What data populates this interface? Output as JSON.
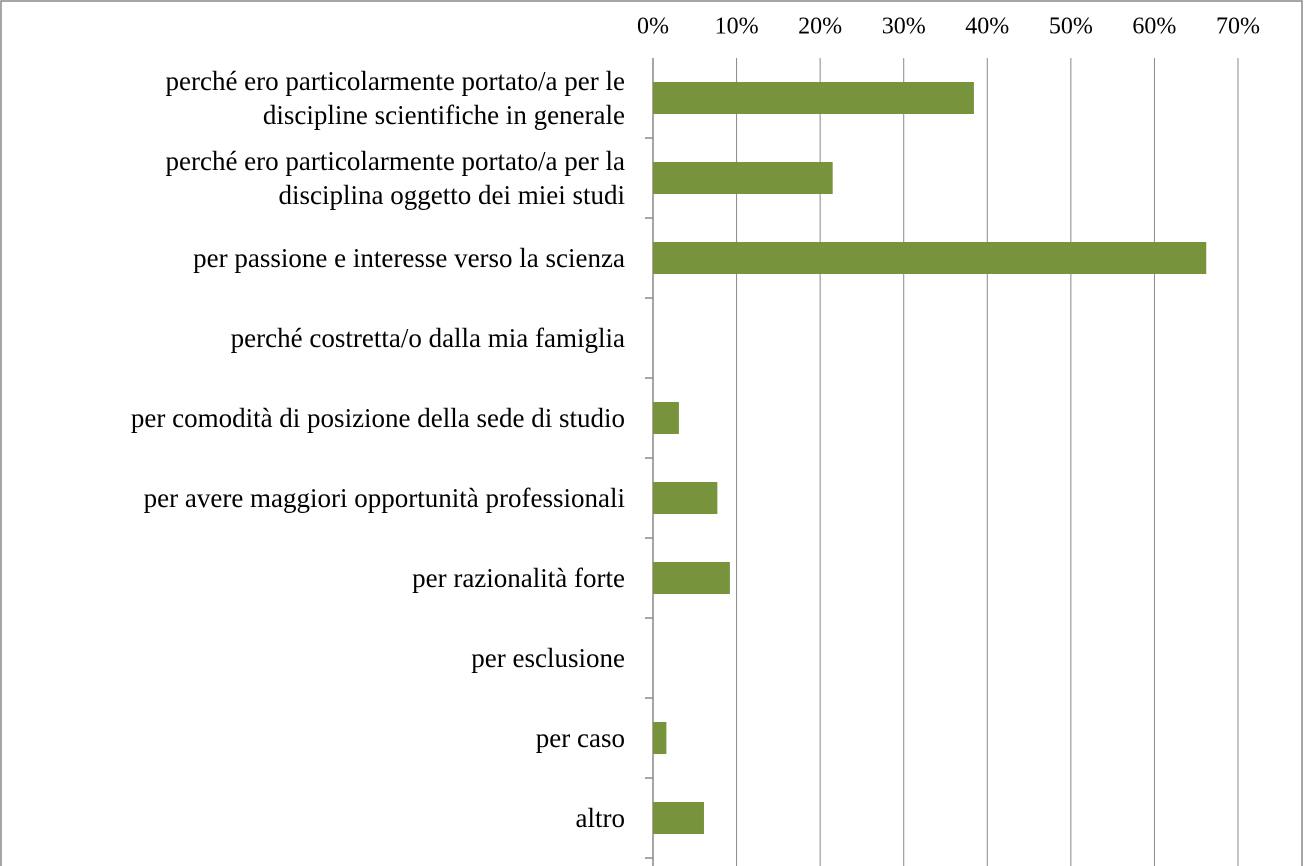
{
  "chart_data": {
    "type": "barh",
    "categories": [
      "perché ero particolarmente portato/a per le discipline scientifiche in generale",
      "perché ero particolarmente portato/a per la disciplina oggetto dei miei studi",
      "per passione e interesse verso la scienza",
      "perché costretta/o dalla mia famiglia",
      "per comodità di posizione della sede di studio",
      "per avere maggiori opportunità professionali",
      "per razionalità forte",
      "per esclusione",
      "per caso",
      "altro"
    ],
    "values": [
      38.4,
      21.5,
      66.2,
      0,
      3.1,
      7.7,
      9.2,
      0,
      1.6,
      6.1
    ],
    "color": "#77933c",
    "xlim": [
      0,
      70
    ],
    "xticks": [
      {
        "value": 0,
        "label": "0%"
      },
      {
        "value": 10,
        "label": "10%"
      },
      {
        "value": 20,
        "label": "20%"
      },
      {
        "value": 30,
        "label": "30%"
      },
      {
        "value": 40,
        "label": "40%"
      },
      {
        "value": 50,
        "label": "50%"
      },
      {
        "value": 60,
        "label": "60%"
      },
      {
        "value": 70,
        "label": "70%"
      }
    ],
    "grid": true
  }
}
